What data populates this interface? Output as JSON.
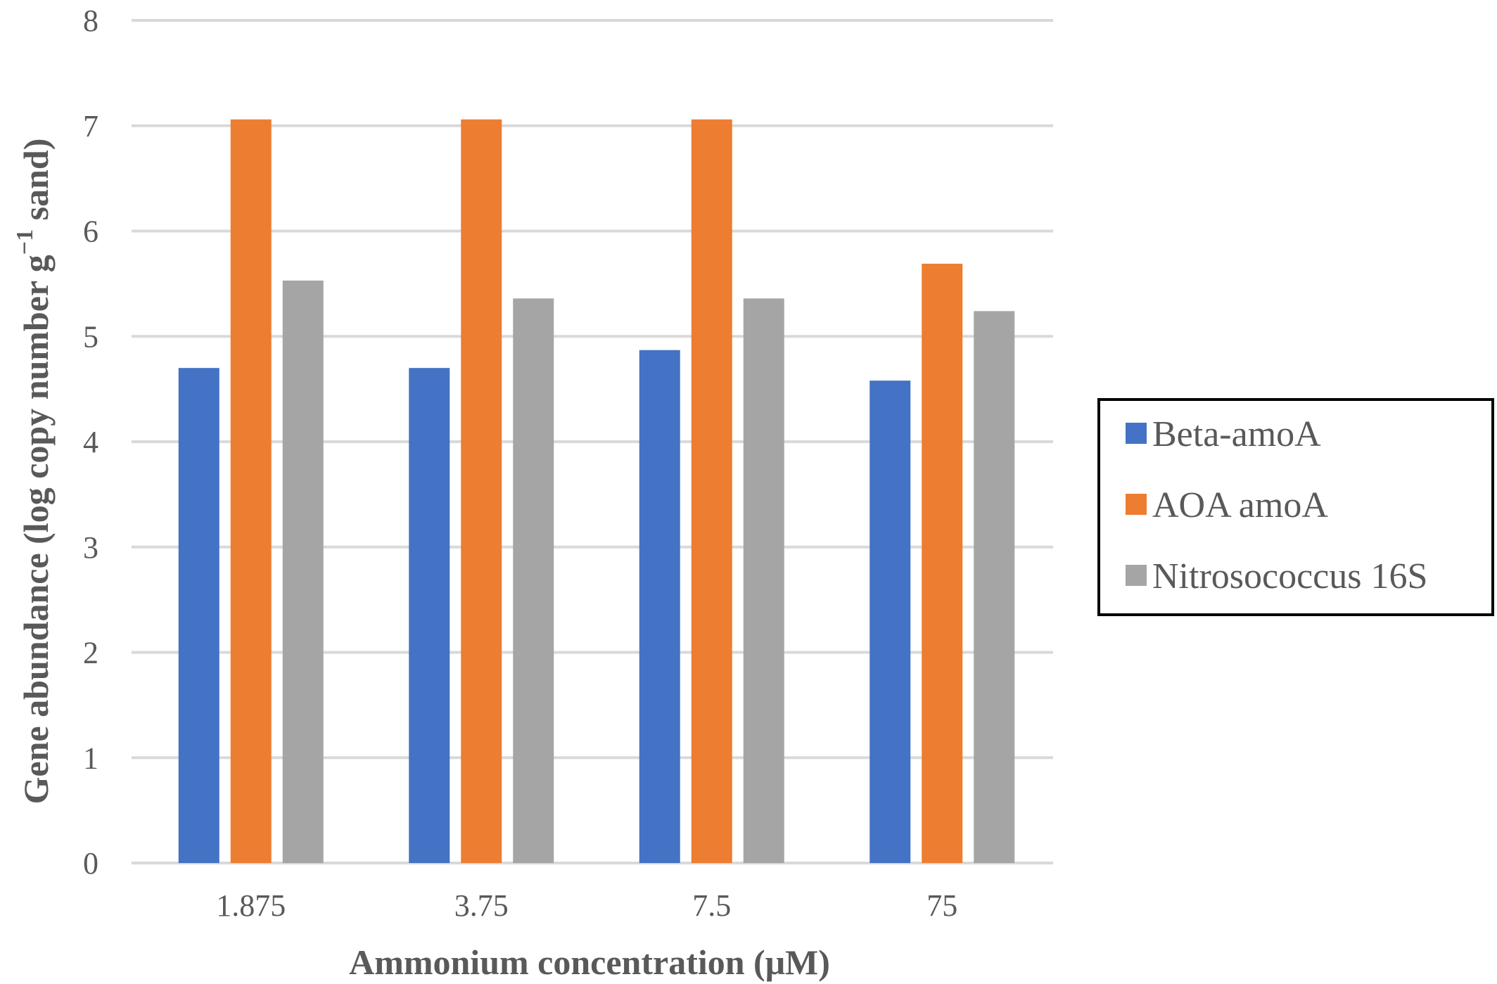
{
  "chart_data": {
    "type": "bar",
    "categories": [
      "1.875",
      "3.75",
      "7.5",
      "75"
    ],
    "series": [
      {
        "name": "Beta-amoA",
        "color": "#4472C4",
        "values": [
          4.7,
          4.7,
          4.87,
          4.58
        ]
      },
      {
        "name": "AOA amoA",
        "color": "#ED7D31",
        "values": [
          7.06,
          7.06,
          7.06,
          5.69
        ]
      },
      {
        "name": "Nitrosococcus 16S",
        "color": "#A5A5A5",
        "values": [
          5.53,
          5.36,
          5.36,
          5.24
        ]
      }
    ],
    "yticks": [
      "0",
      "1",
      "2",
      "3",
      "4",
      "5",
      "6",
      "7",
      "8"
    ],
    "ylim": [
      0,
      8
    ],
    "xlabel": "Ammonium  concentration (μM)",
    "ylabel_main": "Gene abundance (log copy number g",
    "ylabel_sup": "−1",
    "ylabel_tail": " sand)",
    "grid": true,
    "legend_position": "right"
  }
}
